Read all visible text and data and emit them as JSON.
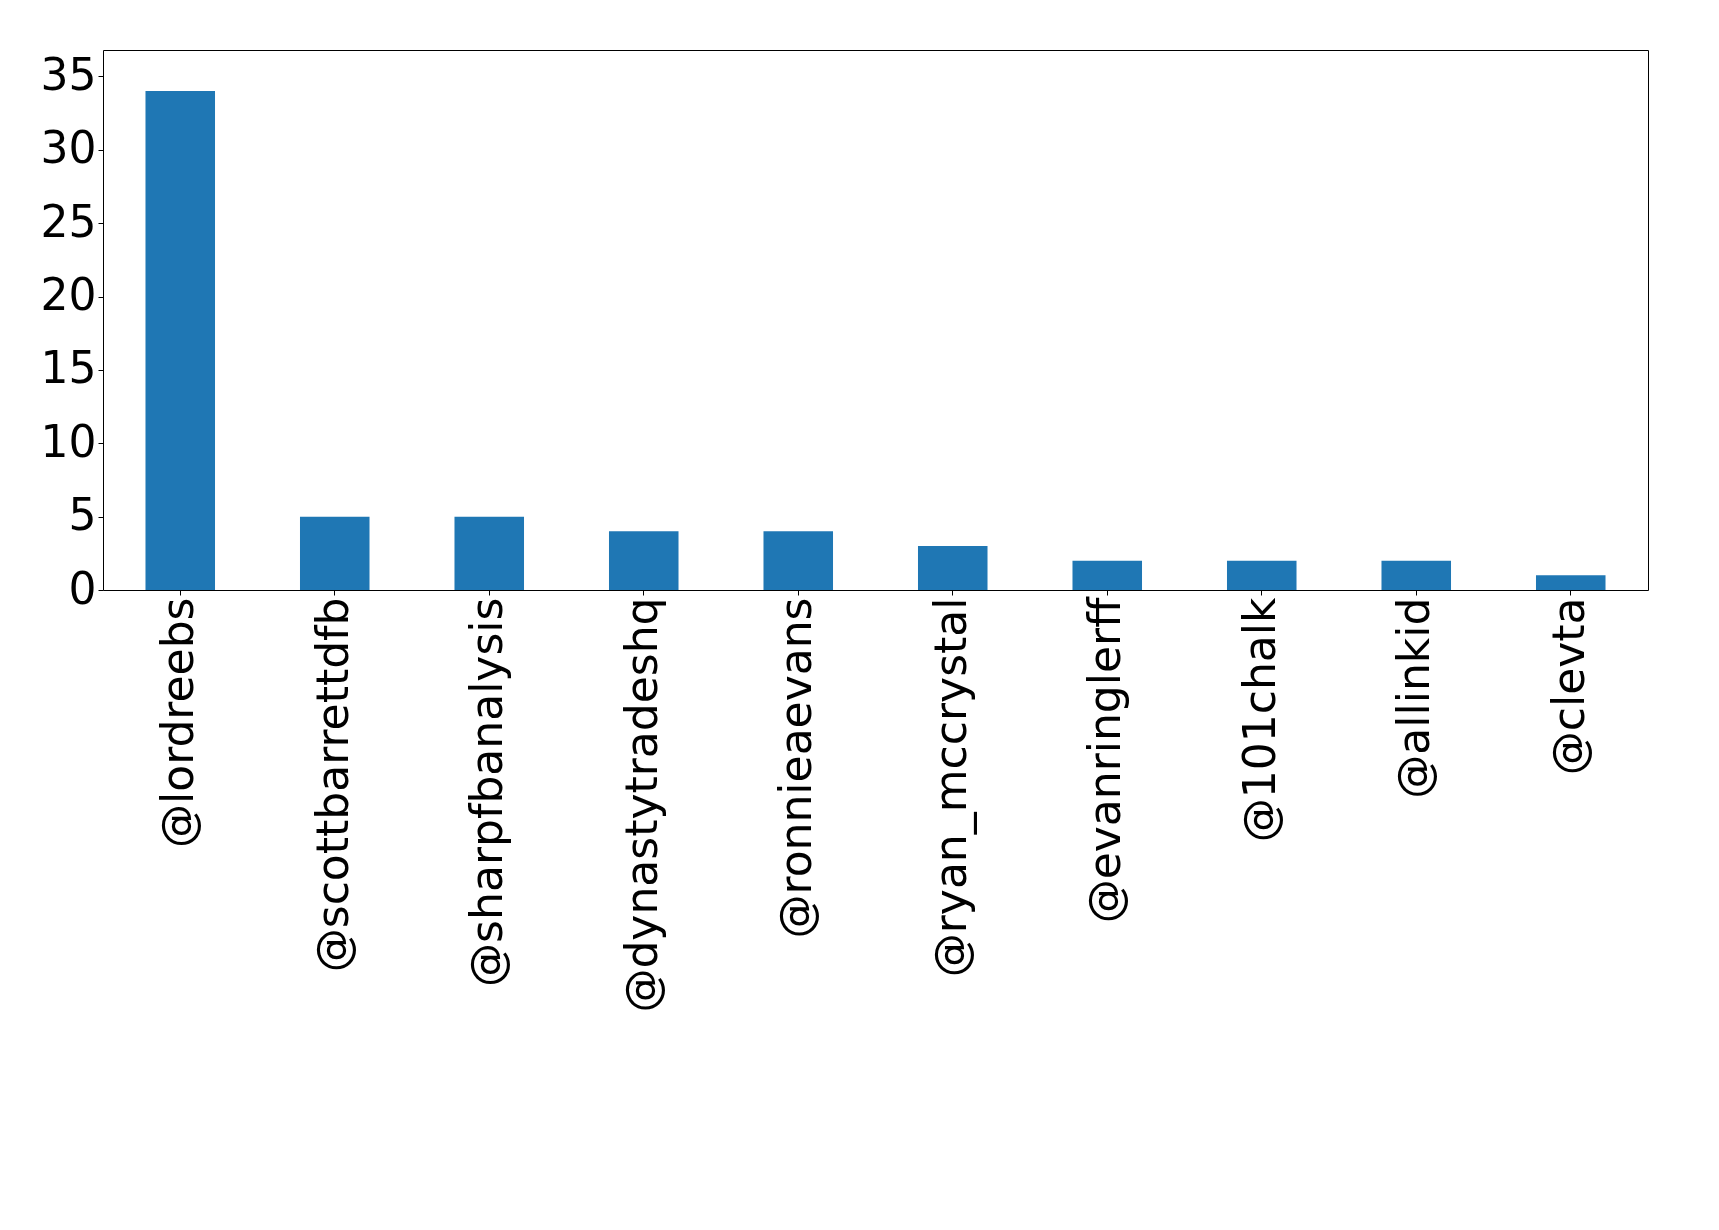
{
  "chart_data": {
    "type": "bar",
    "categories": [
      "@lordreebs",
      "@scottbarrettdfb",
      "@sharpfbanalysis",
      "@dynastytradeshq",
      "@ronnieaevans",
      "@ryan_mccrystal",
      "@evanringlerff",
      "@101chalk",
      "@allinkid",
      "@clevta"
    ],
    "values": [
      34,
      5,
      5,
      4,
      4,
      3,
      2,
      2,
      2,
      1
    ],
    "color": "#1f77b4",
    "ylim": [
      0,
      36.8
    ],
    "yticks": [
      0,
      5,
      10,
      15,
      20,
      25,
      30,
      35
    ],
    "grid": false
  }
}
